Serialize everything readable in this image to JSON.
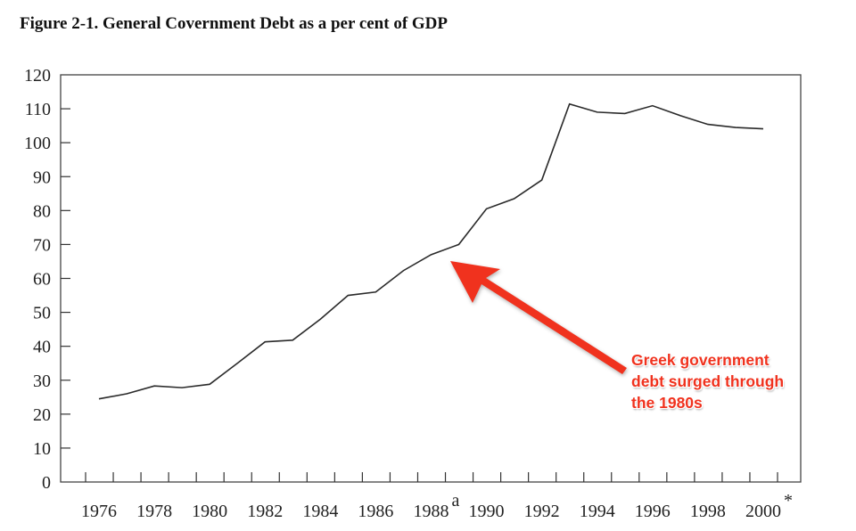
{
  "chart_data": {
    "type": "line",
    "title": "Figure 2-1. General Covernment Debt as a per cent of GDP",
    "xlabel": "",
    "ylabel": "",
    "ylim": [
      0,
      120
    ],
    "yticks": [
      "0",
      "10",
      "20",
      "30",
      "40",
      "50",
      "60",
      "70",
      "80",
      "90",
      "100",
      "110",
      "120"
    ],
    "xtick_labels": [
      {
        "year": 1976,
        "label": "1976",
        "sup": ""
      },
      {
        "year": 1978,
        "label": "1978",
        "sup": ""
      },
      {
        "year": 1980,
        "label": "1980",
        "sup": ""
      },
      {
        "year": 1982,
        "label": "1982",
        "sup": ""
      },
      {
        "year": 1984,
        "label": "1984",
        "sup": ""
      },
      {
        "year": 1986,
        "label": "1986",
        "sup": ""
      },
      {
        "year": 1988,
        "label": "1988",
        "sup": "a"
      },
      {
        "year": 1990,
        "label": "1990",
        "sup": ""
      },
      {
        "year": 1992,
        "label": "1992",
        "sup": ""
      },
      {
        "year": 1994,
        "label": "1994",
        "sup": ""
      },
      {
        "year": 1996,
        "label": "1996",
        "sup": ""
      },
      {
        "year": 1998,
        "label": "1998",
        "sup": ""
      },
      {
        "year": 2000,
        "label": "2000",
        "sup": "*"
      }
    ],
    "x": [
      1976,
      1977,
      1978,
      1979,
      1980,
      1981,
      1982,
      1983,
      1984,
      1985,
      1986,
      1987,
      1988,
      1989,
      1990,
      1991,
      1992,
      1993,
      1994,
      1995,
      1996,
      1997,
      1998,
      1999,
      2000
    ],
    "series": [
      {
        "name": "General government debt (% of GDP)",
        "values": [
          24.5,
          26,
          28.3,
          27.8,
          28.8,
          35,
          41.3,
          41.8,
          48,
          55,
          56,
          62.3,
          67,
          70,
          80.5,
          83.5,
          89,
          111.4,
          109,
          108.6,
          110.9,
          108,
          105.4,
          104.5,
          104.1
        ]
      }
    ],
    "grid": false,
    "annotation": {
      "lines": [
        "Greek government",
        "debt surged through",
        "the 1980s"
      ],
      "points_to_year": 1988.5,
      "color": "#f0321e"
    }
  }
}
